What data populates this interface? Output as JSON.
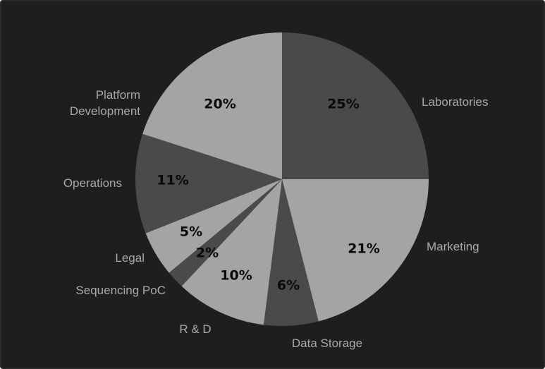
{
  "chart_data": {
    "type": "pie",
    "slices": [
      {
        "label": "Laboratories",
        "percent_label": "25%",
        "value": 25,
        "color": "#4a4a4a"
      },
      {
        "label": "Marketing",
        "percent_label": "21%",
        "value": 21,
        "color": "#a4a4a4"
      },
      {
        "label": "Data Storage",
        "percent_label": "6%",
        "value": 6,
        "color": "#4a4a4a"
      },
      {
        "label": "R & D",
        "percent_label": "10%",
        "value": 10,
        "color": "#a4a4a4"
      },
      {
        "label": "Sequencing PoC",
        "percent_label": "2%",
        "value": 2,
        "color": "#4a4a4a"
      },
      {
        "label": "Legal",
        "percent_label": "5%",
        "value": 5,
        "color": "#a4a4a4"
      },
      {
        "label": "Operations",
        "percent_label": "11%",
        "value": 11,
        "color": "#4a4a4a"
      },
      {
        "label": "Platform Development",
        "percent_label": "20%",
        "value": 20,
        "color": "#a4a4a4"
      }
    ],
    "start_angle": "12 o'clock",
    "direction": "clockwise",
    "background": "#1e1e1e"
  }
}
